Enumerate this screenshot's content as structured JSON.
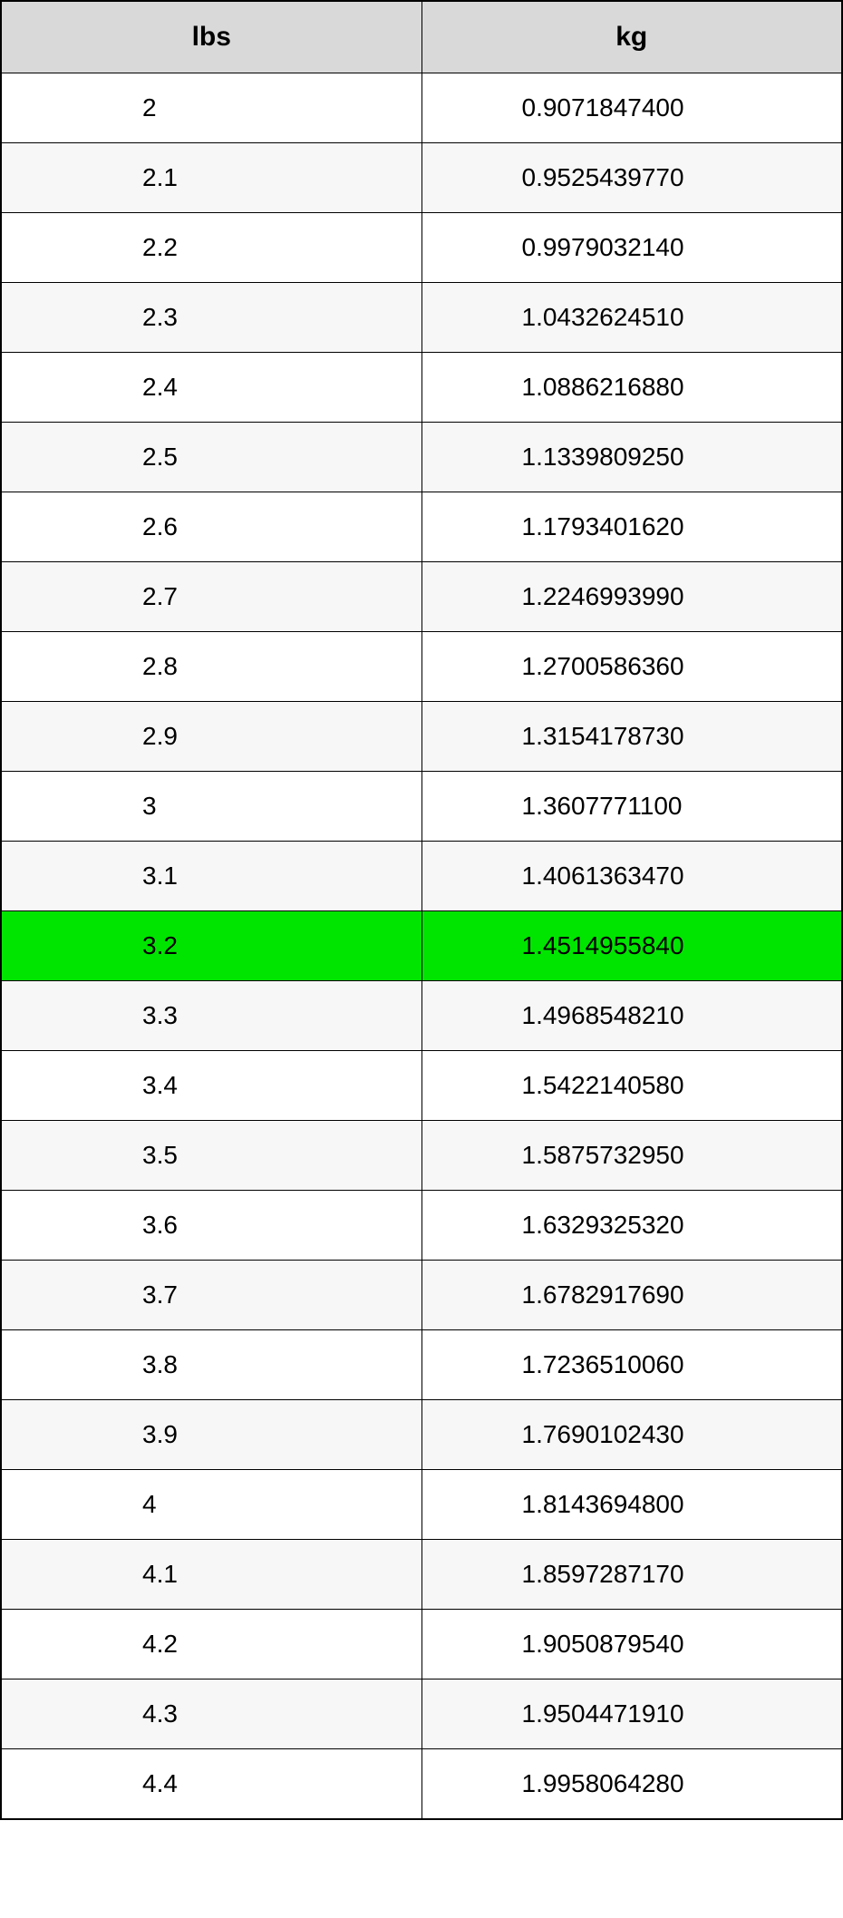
{
  "table": {
    "columns": [
      "lbs",
      "kg"
    ],
    "header_bg": "#d9d9d9",
    "highlight_bg": "#00e500",
    "row_bg_even": "#ffffff",
    "row_bg_odd": "#f7f7f7",
    "border_color": "#000000",
    "font_family": "Arial",
    "header_fontsize": 30,
    "cell_fontsize": 28,
    "rows": [
      {
        "lbs": "2",
        "kg": "0.9071847400",
        "highlight": false
      },
      {
        "lbs": "2.1",
        "kg": "0.9525439770",
        "highlight": false
      },
      {
        "lbs": "2.2",
        "kg": "0.9979032140",
        "highlight": false
      },
      {
        "lbs": "2.3",
        "kg": "1.0432624510",
        "highlight": false
      },
      {
        "lbs": "2.4",
        "kg": "1.0886216880",
        "highlight": false
      },
      {
        "lbs": "2.5",
        "kg": "1.1339809250",
        "highlight": false
      },
      {
        "lbs": "2.6",
        "kg": "1.1793401620",
        "highlight": false
      },
      {
        "lbs": "2.7",
        "kg": "1.2246993990",
        "highlight": false
      },
      {
        "lbs": "2.8",
        "kg": "1.2700586360",
        "highlight": false
      },
      {
        "lbs": "2.9",
        "kg": "1.3154178730",
        "highlight": false
      },
      {
        "lbs": "3",
        "kg": "1.3607771100",
        "highlight": false
      },
      {
        "lbs": "3.1",
        "kg": "1.4061363470",
        "highlight": false
      },
      {
        "lbs": "3.2",
        "kg": "1.4514955840",
        "highlight": true
      },
      {
        "lbs": "3.3",
        "kg": "1.4968548210",
        "highlight": false
      },
      {
        "lbs": "3.4",
        "kg": "1.5422140580",
        "highlight": false
      },
      {
        "lbs": "3.5",
        "kg": "1.5875732950",
        "highlight": false
      },
      {
        "lbs": "3.6",
        "kg": "1.6329325320",
        "highlight": false
      },
      {
        "lbs": "3.7",
        "kg": "1.6782917690",
        "highlight": false
      },
      {
        "lbs": "3.8",
        "kg": "1.7236510060",
        "highlight": false
      },
      {
        "lbs": "3.9",
        "kg": "1.7690102430",
        "highlight": false
      },
      {
        "lbs": "4",
        "kg": "1.8143694800",
        "highlight": false
      },
      {
        "lbs": "4.1",
        "kg": "1.8597287170",
        "highlight": false
      },
      {
        "lbs": "4.2",
        "kg": "1.9050879540",
        "highlight": false
      },
      {
        "lbs": "4.3",
        "kg": "1.9504471910",
        "highlight": false
      },
      {
        "lbs": "4.4",
        "kg": "1.9958064280",
        "highlight": false
      }
    ]
  }
}
